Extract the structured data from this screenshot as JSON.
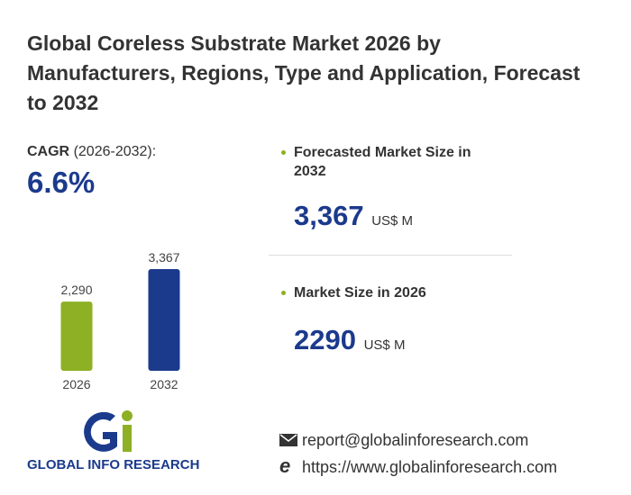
{
  "title": "Global Coreless Substrate Market 2026 by Manufacturers, Regions, Type and Application, Forecast to 2032",
  "cagr": {
    "label": "CAGR",
    "period": "(2026-2032):",
    "value": "6.6%"
  },
  "forecast": {
    "label": "Forecasted Market Size in 2032",
    "value": "3,367",
    "unit": "US$ M"
  },
  "current": {
    "label": "Market Size in 2026",
    "value": "2290",
    "unit": "US$ M"
  },
  "chart_data": {
    "type": "bar",
    "categories": [
      "2026",
      "2032"
    ],
    "values": [
      2290,
      3367
    ],
    "value_labels": [
      "2,290",
      "3,367"
    ],
    "colors": [
      "#8db024",
      "#1b3a8c"
    ]
  },
  "logo": {
    "text": "GLOBAL INFO RESEARCH"
  },
  "contact": {
    "email": "report@globalinforesearch.com",
    "website": "https://www.globalinforesearch.com"
  }
}
